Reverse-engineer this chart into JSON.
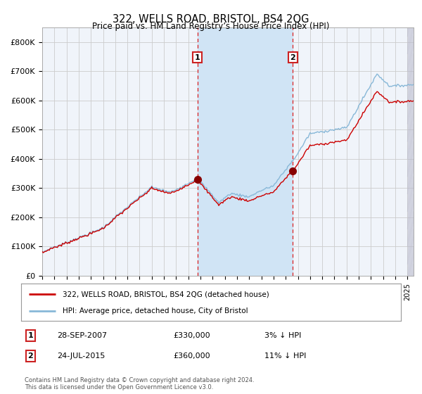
{
  "title": "322, WELLS ROAD, BRISTOL, BS4 2QG",
  "subtitle": "Price paid vs. HM Land Registry’s House Price Index (HPI)",
  "legend_line1": "322, WELLS ROAD, BRISTOL, BS4 2QG (detached house)",
  "legend_line2": "HPI: Average price, detached house, City of Bristol",
  "footnote": "Contains HM Land Registry data © Crown copyright and database right 2024.\nThis data is licensed under the Open Government Licence v3.0.",
  "purchase1_date": "28-SEP-2007",
  "purchase1_price": "£330,000",
  "purchase1_hpi": "3% ↓ HPI",
  "purchase2_date": "24-JUL-2015",
  "purchase2_price": "£360,000",
  "purchase2_hpi": "11% ↓ HPI",
  "xlim_start": 1995.0,
  "xlim_end": 2025.5,
  "ylim_bottom": 0,
  "ylim_top": 850000,
  "yticks": [
    0,
    100000,
    200000,
    300000,
    400000,
    500000,
    600000,
    700000,
    800000
  ],
  "ytick_labels": [
    "£0",
    "£100K",
    "£200K",
    "£300K",
    "£400K",
    "£500K",
    "£600K",
    "£700K",
    "£800K"
  ],
  "grid_color": "#cccccc",
  "plot_bg_color": "#f0f4fa",
  "shaded_region_color": "#d0e4f5",
  "red_line_color": "#cc0000",
  "blue_line_color": "#88b8d8",
  "marker_color": "#880000",
  "purchase1_x": 2007.75,
  "purchase2_x": 2015.58,
  "purchase1_y": 330000,
  "purchase2_y": 360000,
  "purchase1_hpi_y": 340000,
  "purchase2_hpi_y": 404000
}
